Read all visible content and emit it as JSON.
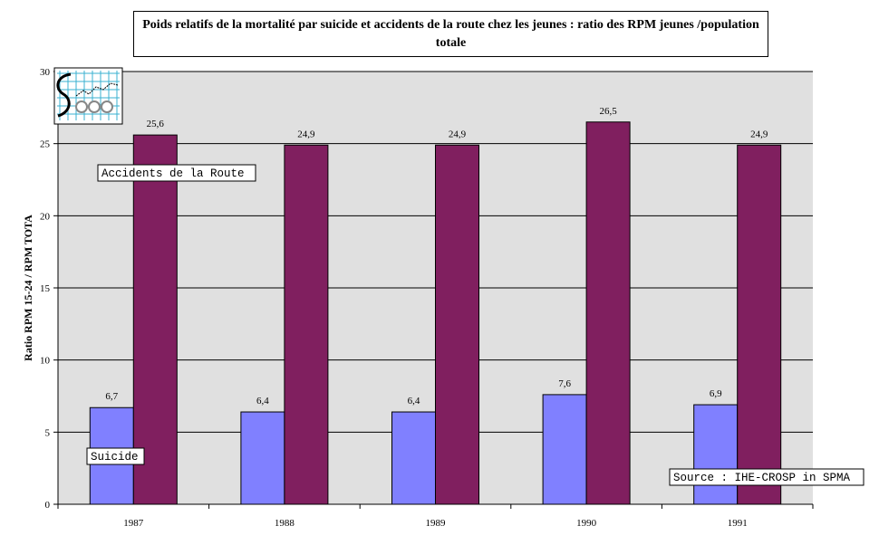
{
  "chart_data": {
    "type": "bar",
    "title": "Poids relatifs de la mortalité par suicide  et accidents de la route  chez les jeunes :  ratio des RPM jeunes /population totale",
    "ylabel": "Ratio RPM 15-24 / RPM TOTA",
    "xlabel": "",
    "categories": [
      "1987",
      "1988",
      "1989",
      "1990",
      "1991"
    ],
    "ylim": [
      0,
      30
    ],
    "yticks": [
      0,
      5,
      10,
      15,
      20,
      25,
      30
    ],
    "grid": true,
    "series": [
      {
        "name": "Suicide",
        "values": [
          6.7,
          6.4,
          6.4,
          7.6,
          6.9
        ],
        "labels": [
          "6,7",
          "6,4",
          "6,4",
          "7,6",
          "6,9"
        ],
        "color": "#8080ff"
      },
      {
        "name": "Accidents de la Route",
        "values": [
          25.6,
          24.9,
          24.9,
          26.5,
          24.9
        ],
        "labels": [
          "25,6",
          "24,9",
          "24,9",
          "26,5",
          "24,9"
        ],
        "color": "#801f5f"
      }
    ],
    "plot_background": "#e0e0e0",
    "source_note": "Source : IHE-CROSP in SPMA"
  }
}
